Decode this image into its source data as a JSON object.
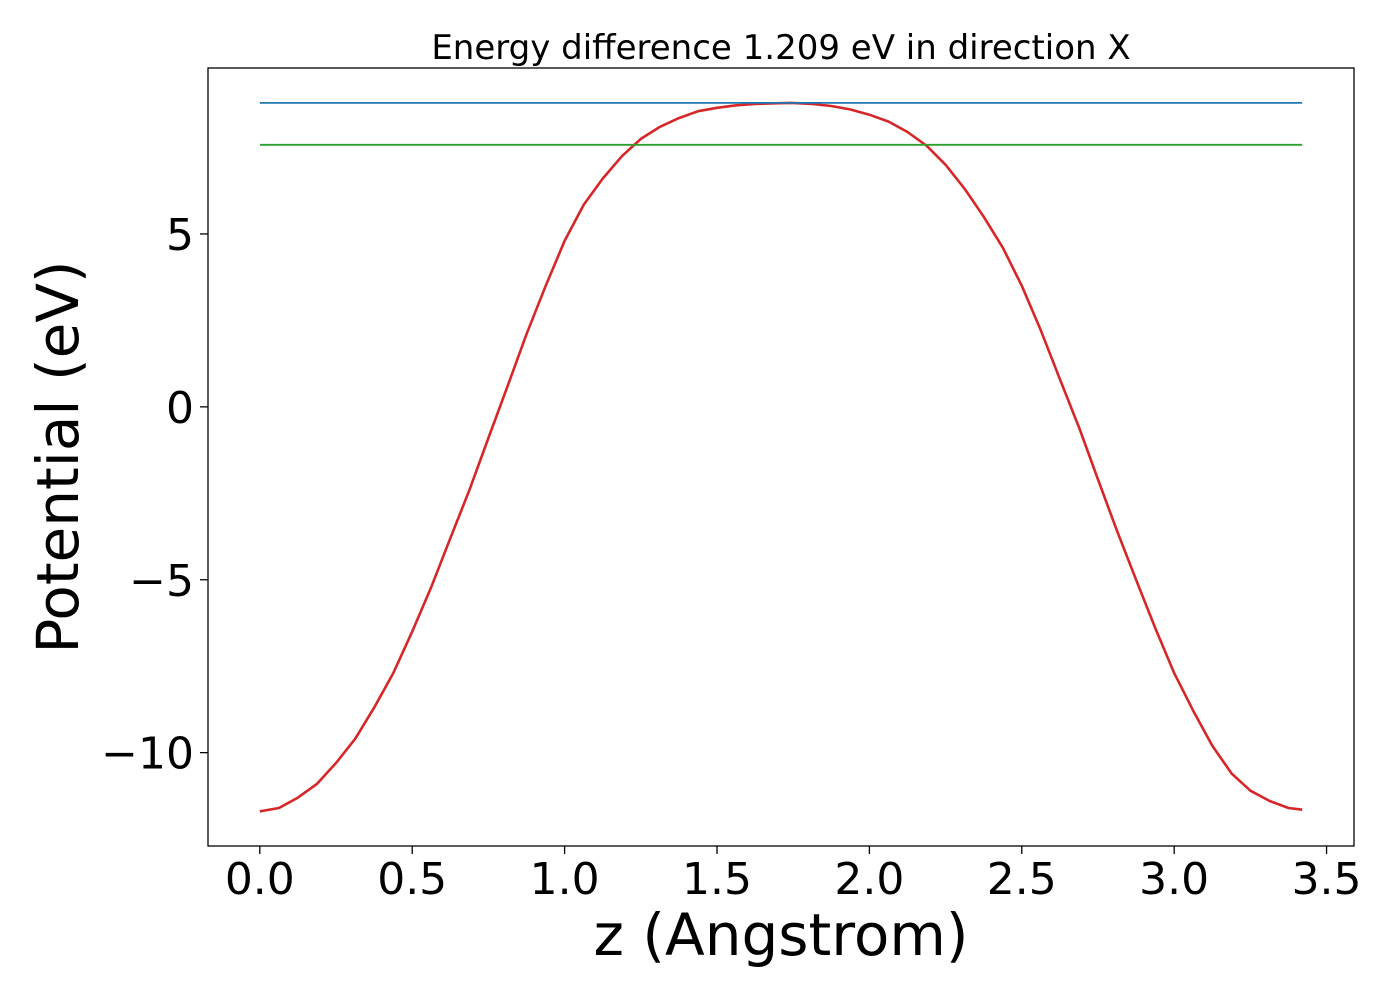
{
  "chart_data": {
    "type": "line",
    "title": "Energy difference 1.209 eV in direction X",
    "xlabel": "z (Angstrom)",
    "ylabel": "Potential (eV)",
    "xlim": [
      -0.17,
      3.59
    ],
    "ylim": [
      -12.7,
      9.8
    ],
    "x_ticks": [
      0.0,
      0.5,
      1.0,
      1.5,
      2.0,
      2.5,
      3.0,
      3.5
    ],
    "x_tick_labels": [
      "0.0",
      "0.5",
      "1.0",
      "1.5",
      "2.0",
      "2.5",
      "3.0",
      "3.5"
    ],
    "y_ticks": [
      5,
      0,
      -5,
      -10
    ],
    "y_tick_labels": [
      "5",
      "0",
      "−5",
      "−10"
    ],
    "grid": false,
    "series": [
      {
        "role": "potential",
        "color": "#d62728",
        "x": [
          0.0,
          0.063,
          0.125,
          0.188,
          0.25,
          0.313,
          0.375,
          0.438,
          0.5,
          0.563,
          0.625,
          0.688,
          0.75,
          0.813,
          0.875,
          0.938,
          1.0,
          1.063,
          1.125,
          1.188,
          1.25,
          1.313,
          1.375,
          1.438,
          1.5,
          1.563,
          1.625,
          1.688,
          1.745,
          1.813,
          1.875,
          1.938,
          2.0,
          2.063,
          2.125,
          2.188,
          2.25,
          2.313,
          2.375,
          2.438,
          2.5,
          2.563,
          2.625,
          2.688,
          2.75,
          2.813,
          2.875,
          2.938,
          3.0,
          3.063,
          3.125,
          3.188,
          3.25,
          3.313,
          3.375,
          3.42
        ],
        "y": [
          -11.7,
          -11.6,
          -11.3,
          -10.9,
          -10.3,
          -9.6,
          -8.7,
          -7.7,
          -6.5,
          -5.2,
          -3.8,
          -2.4,
          -0.9,
          0.6,
          2.1,
          3.5,
          4.8,
          5.85,
          6.6,
          7.25,
          7.75,
          8.1,
          8.35,
          8.55,
          8.65,
          8.72,
          8.76,
          8.78,
          8.79,
          8.76,
          8.7,
          8.6,
          8.45,
          8.25,
          7.95,
          7.55,
          7.0,
          6.3,
          5.5,
          4.6,
          3.5,
          2.2,
          0.8,
          -0.6,
          -2.1,
          -3.6,
          -5.0,
          -6.4,
          -7.7,
          -8.8,
          -9.8,
          -10.6,
          -11.1,
          -11.4,
          -11.6,
          -11.65
        ]
      },
      {
        "role": "upper-level",
        "color": "#1f77b4",
        "x": [
          0.0,
          3.42
        ],
        "y": [
          8.79,
          8.79
        ]
      },
      {
        "role": "lower-level",
        "color": "#2ca02c",
        "x": [
          0.0,
          3.42
        ],
        "y": [
          7.58,
          7.58
        ]
      }
    ]
  }
}
